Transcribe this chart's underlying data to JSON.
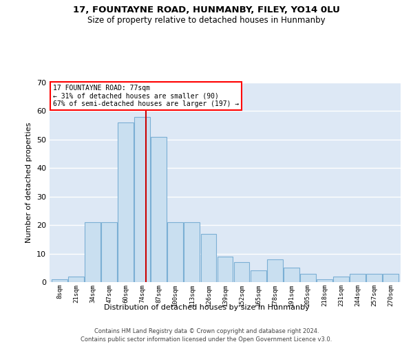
{
  "title1": "17, FOUNTAYNE ROAD, HUNMANBY, FILEY, YO14 0LU",
  "title2": "Size of property relative to detached houses in Hunmanby",
  "xlabel": "Distribution of detached houses by size in Hunmanby",
  "ylabel": "Number of detached properties",
  "bar_labels": [
    "8sqm",
    "21sqm",
    "34sqm",
    "47sqm",
    "60sqm",
    "74sqm",
    "87sqm",
    "100sqm",
    "113sqm",
    "126sqm",
    "139sqm",
    "152sqm",
    "165sqm",
    "178sqm",
    "191sqm",
    "205sqm",
    "218sqm",
    "231sqm",
    "244sqm",
    "257sqm",
    "270sqm"
  ],
  "bar_values": [
    1,
    2,
    21,
    21,
    56,
    58,
    51,
    21,
    21,
    17,
    9,
    7,
    4,
    8,
    5,
    3,
    1,
    2,
    3,
    3,
    3
  ],
  "bar_color": "#c9dff0",
  "bar_edge_color": "#7bafd4",
  "property_label": "17 FOUNTAYNE ROAD: 77sqm",
  "annotation_line1": "← 31% of detached houses are smaller (90)",
  "annotation_line2": "67% of semi-detached houses are larger (197) →",
  "vline_color": "#cc0000",
  "ylim": [
    0,
    70
  ],
  "yticks": [
    0,
    10,
    20,
    30,
    40,
    50,
    60,
    70
  ],
  "background_color": "#dde8f5",
  "footer1": "Contains HM Land Registry data © Crown copyright and database right 2024.",
  "footer2": "Contains public sector information licensed under the Open Government Licence v3.0."
}
